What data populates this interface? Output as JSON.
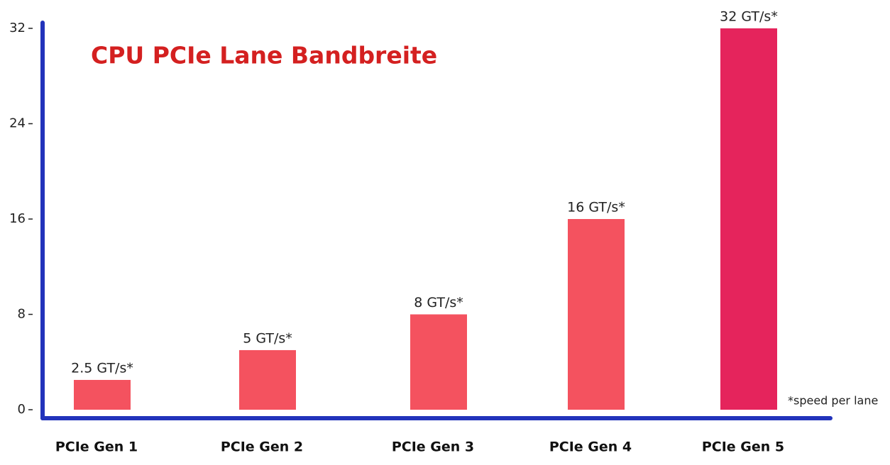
{
  "chart_data": {
    "type": "bar",
    "title": "CPU PCIe Lane Bandbreite",
    "categories": [
      "PCIe Gen 1",
      "PCIe Gen 2",
      "PCIe Gen 3",
      "PCIe Gen 4",
      "PCIe Gen 5"
    ],
    "values": [
      2.5,
      5,
      8,
      16,
      32
    ],
    "value_labels": [
      "2.5 GT/s*",
      "5 GT/s*",
      "8 GT/s*",
      "16 GT/s*",
      "32 GT/s*"
    ],
    "colors": [
      "#f4525f",
      "#f4525f",
      "#f4525f",
      "#f4525f",
      "#e5245c"
    ],
    "ylim": [
      0,
      32
    ],
    "yticks": [
      0,
      8,
      16,
      24,
      32
    ],
    "annotation": "*speed per lane"
  }
}
